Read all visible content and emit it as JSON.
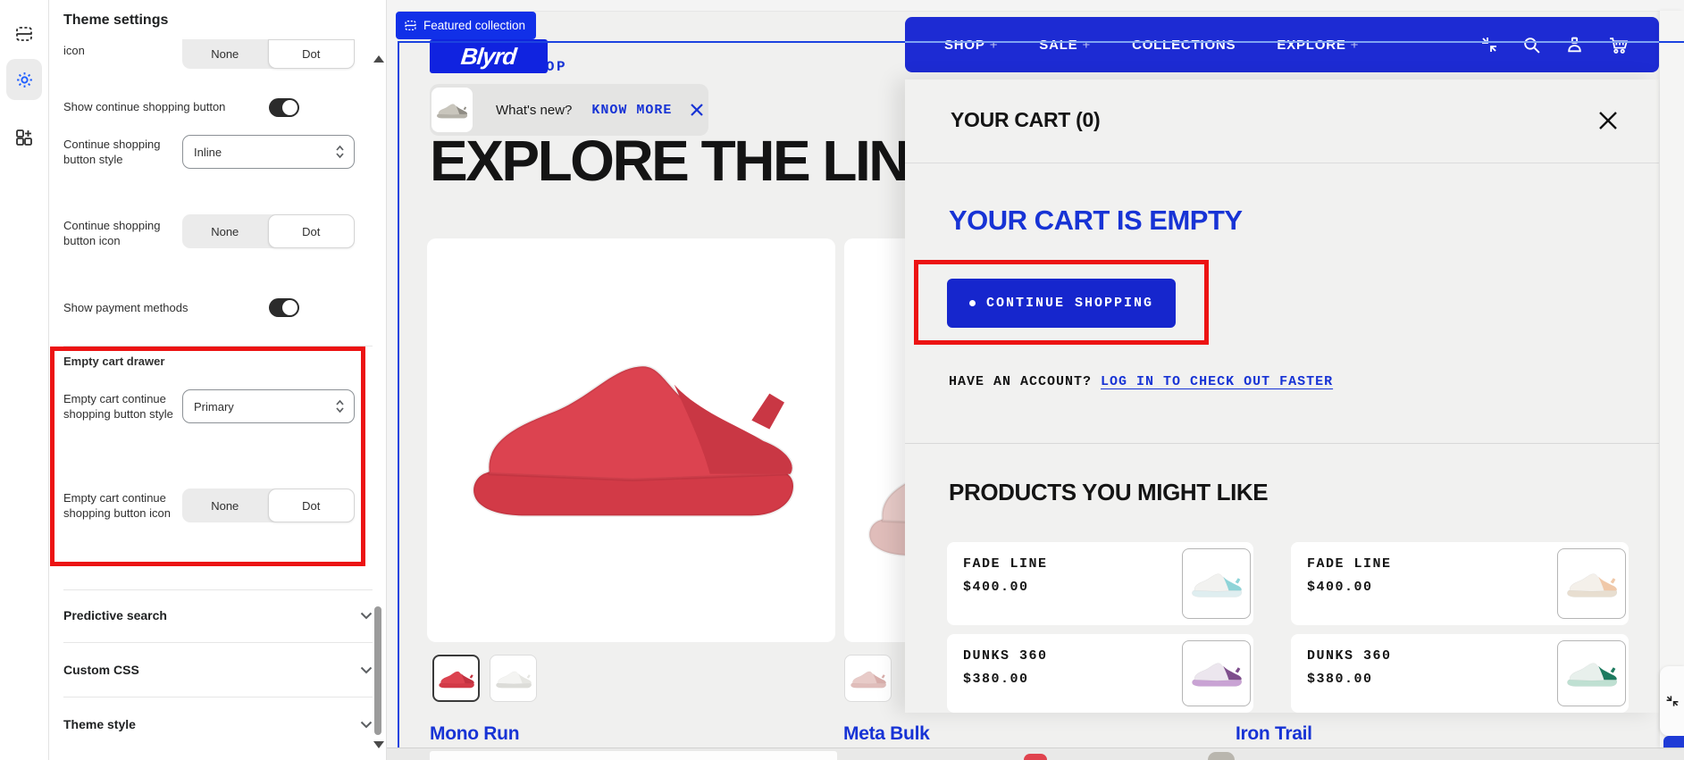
{
  "colors": {
    "accent_blue": "#1733d5",
    "nav_blue": "#1d2bd3",
    "logo_blue": "#1023e0",
    "selection_blue": "#1c43e0",
    "annotation_red": "#ec1313",
    "hero_shoe_red": "#dc4350",
    "page_bg": "#f0f0ef"
  },
  "sidebar_rail": {
    "icons": [
      "sections-icon",
      "settings-icon",
      "apps-icon"
    ],
    "active": "settings-icon"
  },
  "settings_panel": {
    "title": "Theme settings",
    "partial_row": {
      "label": "icon",
      "options": [
        "None",
        "Dot"
      ],
      "selected": "Dot"
    },
    "show_continue": {
      "label": "Show continue shopping button",
      "on": true
    },
    "continue_style": {
      "label": "Continue shopping button style",
      "value": "Inline"
    },
    "continue_icon": {
      "label": "Continue shopping button icon",
      "options": [
        "None",
        "Dot"
      ],
      "selected": "Dot"
    },
    "show_payment": {
      "label": "Show payment methods",
      "on": true
    },
    "empty_cart_section": {
      "heading": "Empty cart drawer",
      "style_row": {
        "label": "Empty cart continue shopping button style",
        "value": "Primary"
      },
      "icon_row": {
        "label": "Empty cart continue shopping button icon",
        "options": [
          "None",
          "Dot"
        ],
        "selected": "Dot"
      }
    },
    "collapsed_sections": [
      {
        "label": "Predictive search"
      },
      {
        "label": "Custom CSS"
      },
      {
        "label": "Theme style"
      }
    ]
  },
  "preview": {
    "section_badge": {
      "label": "Featured collection",
      "icon": "section-icon"
    },
    "logo": "Blyrd",
    "tagline": "LATEST DROP",
    "announcement": {
      "text": "What's new?",
      "link": "KNOW MORE",
      "close_icon": "close-icon"
    },
    "hero_heading": "EXPLORE THE LINE",
    "nav": {
      "items": [
        {
          "label": "SHOP",
          "plus": "+"
        },
        {
          "label": "SALE",
          "plus": "+"
        },
        {
          "label": "COLLECTIONS",
          "plus": ""
        },
        {
          "label": "EXPLORE",
          "plus": "+"
        }
      ],
      "icons": [
        "shrink-icon",
        "search-icon",
        "account-icon",
        "cart-icon"
      ]
    },
    "products": [
      {
        "name": "Mono Run"
      },
      {
        "name": "Meta Bulk"
      },
      {
        "name": "Iron Trail"
      }
    ],
    "thumbnails": [
      {
        "selected": true,
        "body": "#dc4350",
        "accent": "#c23240",
        "sole": "#d23a47"
      },
      {
        "selected": false,
        "body": "#f4f4f2",
        "accent": "#e6e6e2",
        "sole": "#dcdcd8"
      }
    ],
    "partial_thumbnail": {
      "body": "#e8cbc8",
      "accent": "#d8aeab",
      "sole": "#e0bdba"
    },
    "hero_shoe": {
      "body": "#dc4350",
      "accent": "#c93744",
      "sole": "#d23a47"
    },
    "announce_shoe": {
      "body": "#c9c6bd",
      "accent": "#8f8c84",
      "sole": "#b5b2a9"
    },
    "partial_card_shoe": {
      "body": "#e8cbc8",
      "accent": "#d8aeab",
      "sole": "#e0bdba"
    },
    "cart_drawer": {
      "title": "YOUR CART (0)",
      "empty_title": "YOUR CART IS EMPTY",
      "continue_button": "CONTINUE SHOPPING",
      "account_text": "HAVE AN ACCOUNT?",
      "account_link": "LOG IN TO CHECK OUT FASTER",
      "suggestions_title": "PRODUCTS YOU MIGHT LIKE",
      "suggestions": [
        {
          "name": "FADE LINE",
          "price": "$400.00",
          "body": "#f2f2f0",
          "accent": "#8fd4d8",
          "sole": "#dfeef0"
        },
        {
          "name": "FADE LINE",
          "price": "$400.00",
          "body": "#f4f0ea",
          "accent": "#f0c8a8",
          "sole": "#e8ded0"
        },
        {
          "name": "DUNKS 360",
          "price": "$380.00",
          "body": "#ece6ee",
          "accent": "#7e4e8c",
          "sole": "#c9a3d4"
        },
        {
          "name": "DUNKS 360",
          "price": "$380.00",
          "body": "#e8f0ec",
          "accent": "#1d7a5f",
          "sole": "#bfe0d2"
        }
      ]
    }
  }
}
